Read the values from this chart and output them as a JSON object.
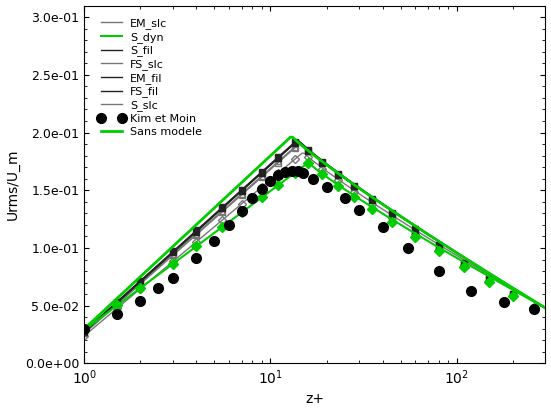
{
  "xlabel": "z+",
  "ylabel": "Urms/U_m",
  "xlim": [
    1,
    300
  ],
  "ylim": [
    0.0,
    0.31
  ],
  "yticks": [
    0.0,
    0.05,
    0.1,
    0.15,
    0.2,
    0.25,
    0.3
  ],
  "ytick_labels": [
    "0.0e+00",
    "5.0e-02",
    "1.0e-01",
    "1.5e-01",
    "2.0e-01",
    "2.5e-01",
    "3.0e-01"
  ],
  "background": "#ffffff",
  "line_color": "#555555",
  "green_color": "#00cc00",
  "black_color": "#111111",
  "legend_order": [
    "EM_slc",
    "S_dyn",
    "S_fil",
    "FS_slc",
    "EM_fil",
    "FS_fil",
    "S_slc",
    "Kim_et_Moin",
    "Sans_modele"
  ],
  "series_config": {
    "EM_slc": {
      "color": "#777777",
      "marker": "s",
      "filled": false,
      "lw": 1.0,
      "ms": 4,
      "label": "EM_slc"
    },
    "S_dyn": {
      "color": "#00cc00",
      "marker": "D",
      "filled": true,
      "lw": 1.5,
      "ms": 5,
      "label": "S_dyn"
    },
    "S_fil": {
      "color": "#222222",
      "marker": "o",
      "filled": true,
      "lw": 1.0,
      "ms": 4,
      "label": "S_fil"
    },
    "FS_slc": {
      "color": "#777777",
      "marker": "^",
      "filled": false,
      "lw": 1.0,
      "ms": 4,
      "label": "FS_slc"
    },
    "EM_fil": {
      "color": "#222222",
      "marker": "s",
      "filled": true,
      "lw": 1.0,
      "ms": 4,
      "label": "EM_fil"
    },
    "FS_fil": {
      "color": "#222222",
      "marker": "^",
      "filled": true,
      "lw": 1.0,
      "ms": 4,
      "label": "FS_fil"
    },
    "S_slc": {
      "color": "#777777",
      "marker": "D",
      "filled": false,
      "lw": 1.0,
      "ms": 4,
      "label": "S_slc"
    },
    "Kim_et_Moin": {
      "color": "#000000",
      "marker": "o",
      "filled": true,
      "lw": 0,
      "ms": 7,
      "label": "Kim et Moin"
    },
    "Sans_modele": {
      "color": "#00cc00",
      "marker": "None",
      "filled": true,
      "lw": 2.0,
      "ms": 0,
      "label": "Sans modele"
    }
  }
}
